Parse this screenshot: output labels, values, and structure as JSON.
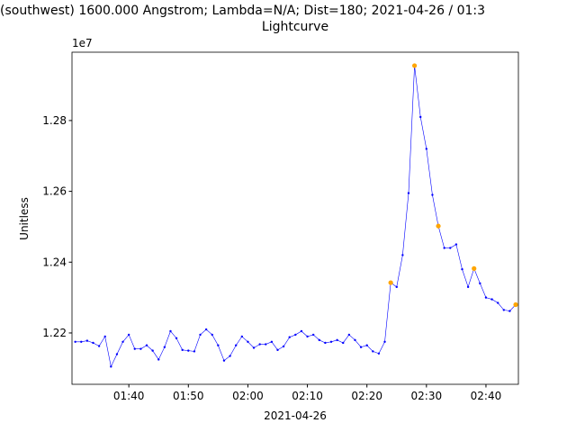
{
  "chart_data": {
    "type": "line",
    "title": "(southwest) 1600.000 Angstrom; Lambda=N/A; Dist=180; 2021-04-26 / 01:3",
    "subtitle": "Lightcurve",
    "x_label": "2021-04-26",
    "y_label": "Unitless",
    "y_offset": "1e7",
    "xlim": [
      "01:30:27",
      "02:45:27"
    ],
    "xticks": [
      "01:40",
      "01:50",
      "02:00",
      "02:10",
      "02:20",
      "02:30",
      "02:40"
    ],
    "ylim": [
      1.2055,
      1.2993
    ],
    "yticks": [
      1.22,
      1.24,
      1.26,
      1.28
    ],
    "series": [
      {
        "color": "#0000ff",
        "marker": "dot",
        "x": [
          "01:31",
          "01:32",
          "01:33",
          "01:34",
          "01:35",
          "01:36",
          "01:37",
          "01:38",
          "01:39",
          "01:40",
          "01:41",
          "01:42",
          "01:43",
          "01:44",
          "01:45",
          "01:46",
          "01:47",
          "01:48",
          "01:49",
          "01:50",
          "01:51",
          "01:52",
          "01:53",
          "01:54",
          "01:55",
          "01:56",
          "01:57",
          "01:58",
          "01:59",
          "02:00",
          "02:01",
          "02:02",
          "02:03",
          "02:04",
          "02:05",
          "02:06",
          "02:07",
          "02:08",
          "02:09",
          "02:10",
          "02:11",
          "02:12",
          "02:13",
          "02:14",
          "02:15",
          "02:16",
          "02:17",
          "02:18",
          "02:19",
          "02:20",
          "02:21",
          "02:22",
          "02:23",
          "02:24",
          "02:25",
          "02:26",
          "02:27",
          "02:28",
          "02:29",
          "02:30",
          "02:31",
          "02:32",
          "02:33",
          "02:34",
          "02:35",
          "02:36",
          "02:37",
          "02:38",
          "02:39",
          "02:40",
          "02:41",
          "02:42",
          "02:43",
          "02:44",
          "02:45"
        ],
        "values": [
          1.2175,
          1.2175,
          1.2178,
          1.2172,
          1.2163,
          1.219,
          1.2105,
          1.214,
          1.2175,
          1.2195,
          1.2155,
          1.2155,
          1.2165,
          1.215,
          1.2125,
          1.216,
          1.2205,
          1.2185,
          1.2152,
          1.215,
          1.2148,
          1.2195,
          1.221,
          1.2195,
          1.2165,
          1.2122,
          1.2135,
          1.2165,
          1.219,
          1.2175,
          1.2158,
          1.2168,
          1.2168,
          1.2175,
          1.2152,
          1.2162,
          1.2188,
          1.2195,
          1.2205,
          1.219,
          1.2195,
          1.218,
          1.2172,
          1.2175,
          1.218,
          1.2172,
          1.2195,
          1.218,
          1.216,
          1.2165,
          1.2148,
          1.2142,
          1.2175,
          1.2342,
          1.233,
          1.242,
          1.2595,
          1.2955,
          1.281,
          1.272,
          1.259,
          1.2502,
          1.244,
          1.244,
          1.245,
          1.238,
          1.233,
          1.2382,
          1.234,
          1.23,
          1.2295,
          1.2285,
          1.2265,
          1.2262,
          1.228
        ]
      },
      {
        "color": "#ffa500",
        "marker": "point",
        "x": [
          "02:24",
          "02:28",
          "02:32",
          "02:38",
          "02:45"
        ],
        "values": [
          1.2342,
          1.2955,
          1.2502,
          1.2382,
          1.228
        ]
      }
    ]
  }
}
